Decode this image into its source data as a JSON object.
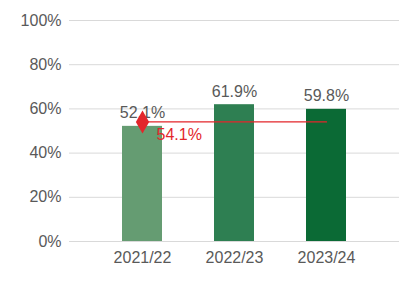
{
  "chart_data": {
    "type": "bar",
    "categories": [
      "2021/22",
      "2022/23",
      "2023/24"
    ],
    "values": [
      52.1,
      61.9,
      59.8
    ],
    "value_labels": [
      "52.1%",
      "61.9%",
      "59.8%"
    ],
    "colors": [
      "#659c72",
      "#2e7f52",
      "#0b6a35"
    ],
    "data_labels": true,
    "ylim": [
      0,
      100
    ],
    "yticks": [
      {
        "value": 0,
        "label": "0%"
      },
      {
        "value": 20,
        "label": "20%"
      },
      {
        "value": 40,
        "label": "40%"
      },
      {
        "value": 60,
        "label": "60%"
      },
      {
        "value": 80,
        "label": "80%"
      },
      {
        "value": 100,
        "label": "100%"
      }
    ],
    "grid": true,
    "reference_line": {
      "value": 54.1,
      "label": "54.1%",
      "color": "#e3262b",
      "marker": "diamond"
    }
  }
}
